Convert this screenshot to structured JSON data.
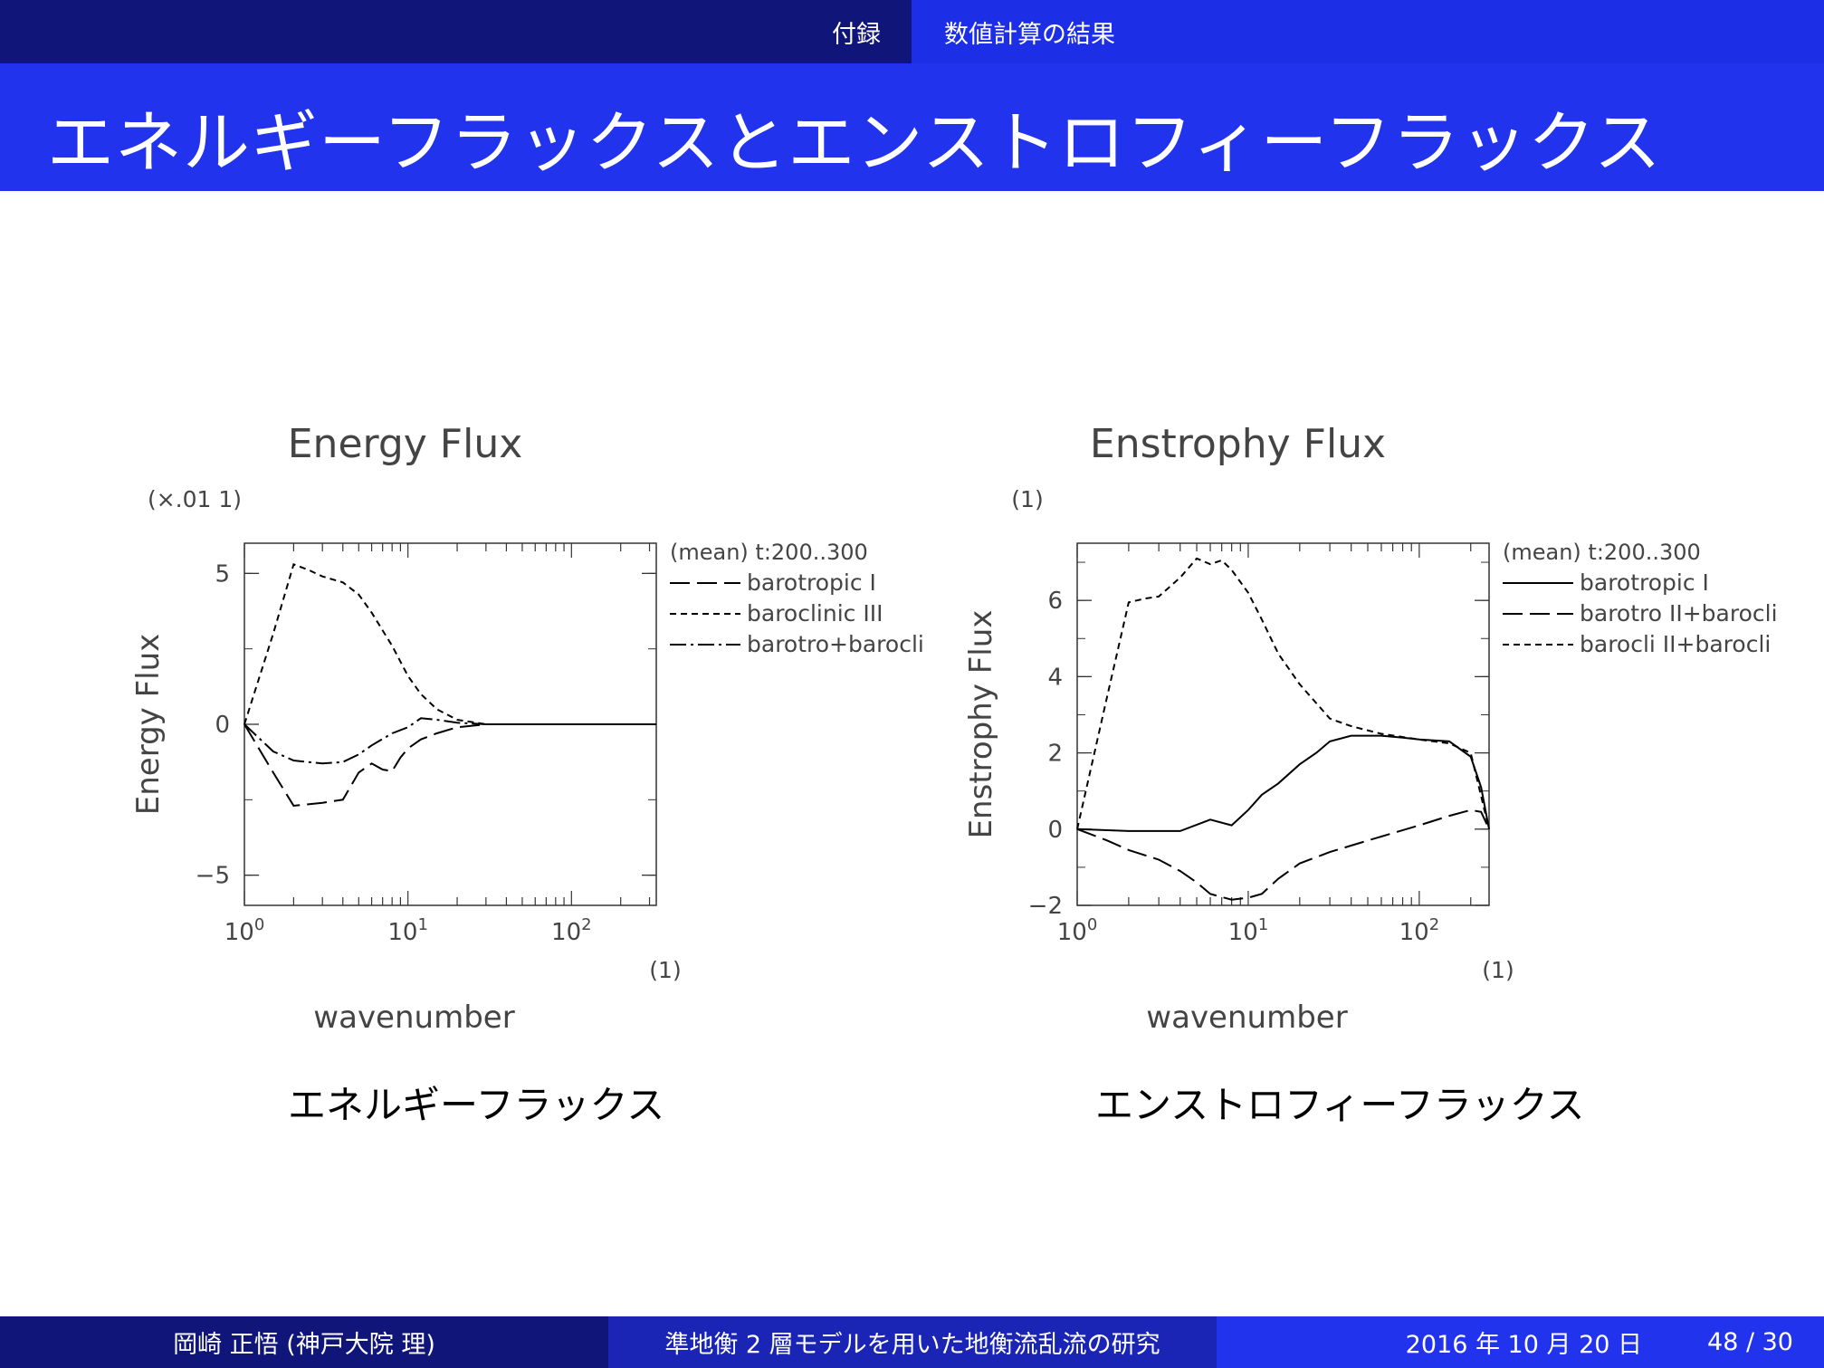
{
  "header": {
    "section": "付録",
    "subsection": "数値計算の結果"
  },
  "title": "エネルギーフラックスとエンストロフィーフラックス",
  "captions": {
    "energy": "エネルギーフラックス",
    "enstrophy": "エンストロフィーフラックス"
  },
  "footer": {
    "author": "岡崎 正悟 (神戸大院 理)",
    "talk_title": "準地衡 2 層モデルを用いた地衡流乱流の研究",
    "date": "2016 年 10 月 20 日",
    "page": "48 / 30"
  },
  "chart_data": [
    {
      "type": "line",
      "title": "Energy Flux",
      "ylabel": "Energy Flux",
      "xlabel": "wavenumber",
      "xunit": "(1)",
      "yunit": "(×.01 1)",
      "xscale": "log",
      "xlim": [
        1,
        330
      ],
      "ylim": [
        -6,
        6
      ],
      "grid": false,
      "legend_header": "(mean) t:200..300",
      "legend_position": "right",
      "xticks": [
        {
          "v": 1,
          "b": "10",
          "e": "0"
        },
        {
          "v": 10,
          "b": "10",
          "e": "1"
        },
        {
          "v": 100,
          "b": "10",
          "e": "2"
        }
      ],
      "yticks": [
        {
          "v": -5,
          "label": "−5"
        },
        {
          "v": 0,
          "label": "0"
        },
        {
          "v": 5,
          "label": "5"
        }
      ],
      "series": [
        {
          "name": "barotropic I",
          "dash": "22,8",
          "x": [
            1,
            1.5,
            2,
            3,
            4,
            5,
            6,
            7,
            8,
            9,
            10,
            12,
            15,
            20,
            30,
            50,
            100,
            330
          ],
          "y": [
            0,
            -1.6,
            -2.7,
            -2.6,
            -2.5,
            -1.6,
            -1.3,
            -1.5,
            -1.55,
            -1.1,
            -0.8,
            -0.5,
            -0.3,
            -0.1,
            0,
            0,
            0,
            0
          ]
        },
        {
          "name": "baroclinic III",
          "dash": "7,5",
          "x": [
            1,
            1.5,
            2,
            2.5,
            3,
            4,
            5,
            6,
            8,
            10,
            12,
            15,
            20,
            30,
            50,
            100,
            330
          ],
          "y": [
            0,
            3,
            5.3,
            5.1,
            4.9,
            4.7,
            4.3,
            3.7,
            2.6,
            1.6,
            1.0,
            0.5,
            0.15,
            0,
            0,
            0,
            0
          ]
        },
        {
          "name": "barotro+barocli",
          "dash": "18,5,3,5",
          "x": [
            1,
            1.5,
            2,
            3,
            4,
            5,
            6,
            8,
            10,
            12,
            15,
            20,
            30,
            50,
            100,
            330
          ],
          "y": [
            0,
            -0.9,
            -1.2,
            -1.3,
            -1.25,
            -1.0,
            -0.7,
            -0.3,
            -0.1,
            0.2,
            0.15,
            0.05,
            0,
            0,
            0,
            0
          ]
        }
      ]
    },
    {
      "type": "line",
      "title": "Enstrophy Flux",
      "ylabel": "Enstrophy Flux",
      "xlabel": "wavenumber",
      "xunit": "(1)",
      "yunit": "(1)",
      "xscale": "log",
      "xlim": [
        1,
        256
      ],
      "ylim": [
        -2,
        7.5
      ],
      "grid": false,
      "legend_header": "(mean) t:200..300",
      "legend_position": "right",
      "xticks": [
        {
          "v": 1,
          "b": "10",
          "e": "0"
        },
        {
          "v": 10,
          "b": "10",
          "e": "1"
        },
        {
          "v": 100,
          "b": "10",
          "e": "2"
        }
      ],
      "yticks": [
        {
          "v": -2,
          "label": "−2"
        },
        {
          "v": 0,
          "label": "0"
        },
        {
          "v": 2,
          "label": "2"
        },
        {
          "v": 4,
          "label": "4"
        },
        {
          "v": 6,
          "label": "6"
        }
      ],
      "series": [
        {
          "name": "barotropic I",
          "dash": "",
          "x": [
            1,
            2,
            4,
            6,
            8,
            10,
            12,
            15,
            20,
            25,
            30,
            40,
            60,
            80,
            100,
            150,
            200,
            230,
            256
          ],
          "y": [
            0,
            -0.05,
            -0.05,
            0.25,
            0.1,
            0.5,
            0.9,
            1.2,
            1.7,
            2.0,
            2.3,
            2.45,
            2.45,
            2.4,
            2.35,
            2.3,
            1.9,
            1.1,
            0
          ]
        },
        {
          "name": "barotro II+barocli",
          "dash": "22,8",
          "x": [
            1,
            1.5,
            2,
            3,
            4,
            5,
            6,
            8,
            10,
            12,
            15,
            20,
            30,
            50,
            100,
            150,
            200,
            230,
            256
          ],
          "y": [
            0,
            -0.3,
            -0.55,
            -0.8,
            -1.1,
            -1.4,
            -1.7,
            -1.85,
            -1.8,
            -1.7,
            -1.3,
            -0.9,
            -0.6,
            -0.3,
            0.1,
            0.35,
            0.5,
            0.45,
            0
          ]
        },
        {
          "name": "barocli II+barocli",
          "dash": "7,5",
          "x": [
            1,
            1.5,
            2,
            2.5,
            3,
            4,
            5,
            6,
            7,
            8,
            10,
            12,
            15,
            20,
            30,
            40,
            60,
            100,
            150,
            200,
            256
          ],
          "y": [
            0,
            3.5,
            5.95,
            6.05,
            6.1,
            6.6,
            7.1,
            6.95,
            7.05,
            6.8,
            6.2,
            5.5,
            4.6,
            3.8,
            2.9,
            2.7,
            2.5,
            2.35,
            2.25,
            2.0,
            0
          ]
        }
      ]
    }
  ]
}
